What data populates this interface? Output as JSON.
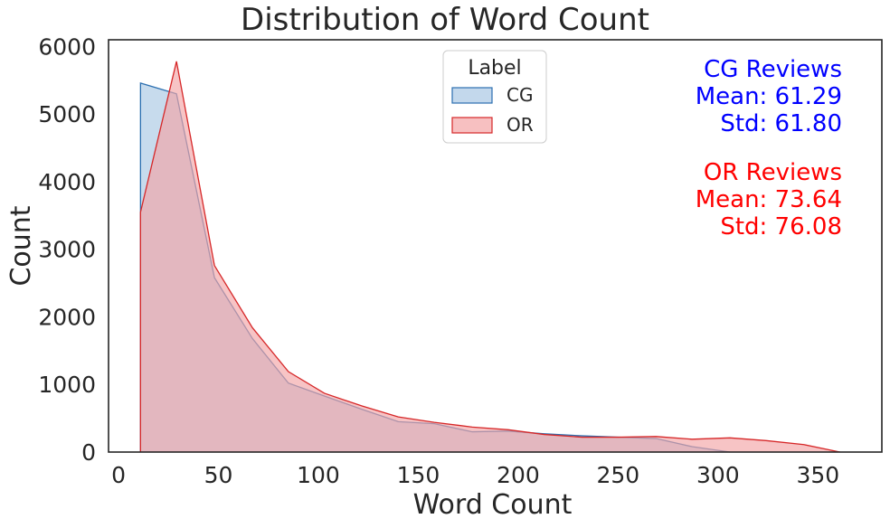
{
  "chart_data": {
    "type": "area",
    "title": "Distribution of Word Count",
    "xlabel": "Word Count",
    "ylabel": "Count",
    "xlim": [
      -5,
      382
    ],
    "ylim": [
      0,
      6100
    ],
    "xticks": [
      0,
      50,
      100,
      150,
      200,
      250,
      300,
      350
    ],
    "yticks": [
      0,
      1000,
      2000,
      3000,
      4000,
      5000,
      6000
    ],
    "grid": false,
    "legend": {
      "title": "Label",
      "placement": "top-center",
      "entries": [
        "CG",
        "OR"
      ]
    },
    "series": [
      {
        "name": "CG",
        "stroke": "#2b6fb0",
        "fill": "#a9c8e4",
        "x": [
          11,
          29,
          48,
          67,
          85,
          103,
          122,
          140,
          158,
          177,
          195,
          213,
          232,
          250,
          269,
          287,
          306
        ],
        "y": [
          5460,
          5300,
          2580,
          1680,
          1020,
          830,
          630,
          450,
          420,
          300,
          310,
          270,
          240,
          220,
          200,
          80,
          0
        ]
      },
      {
        "name": "OR",
        "stroke": "#d62728",
        "fill": "#f3a5a6",
        "x": [
          11,
          29,
          48,
          67,
          85,
          103,
          122,
          140,
          158,
          177,
          195,
          213,
          232,
          250,
          269,
          287,
          306,
          324,
          343,
          361
        ],
        "y": [
          3550,
          5780,
          2760,
          1840,
          1190,
          870,
          680,
          520,
          440,
          370,
          330,
          260,
          220,
          220,
          230,
          190,
          210,
          170,
          110,
          0
        ]
      }
    ]
  },
  "stats": {
    "cg": {
      "title": "CG Reviews",
      "mean": "Mean: 61.29",
      "std": "Std: 61.80",
      "color": "#0000ff"
    },
    "or": {
      "title": "OR Reviews",
      "mean": "Mean: 73.64",
      "std": "Std: 76.08",
      "color": "#ff0000"
    }
  }
}
